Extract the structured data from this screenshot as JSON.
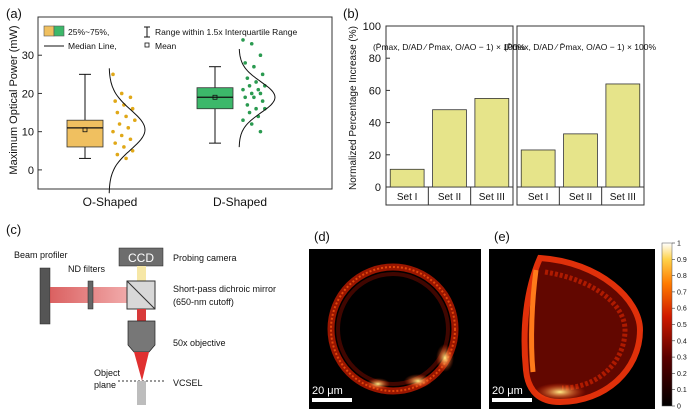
{
  "panels": {
    "a": {
      "label": "(a)",
      "legend": {
        "box_label": "25%~75%,",
        "median_label": "Median Line,",
        "range_label": "Range within 1.5x Interquartile Range",
        "mean_label": "Mean"
      }
    },
    "b": {
      "label": "(b)",
      "formula_left": "(P̄max, D/AD ⁄ P̄max, O/AO − 1) × 100%",
      "formula_right": "(P̄max, D/AD ⁄ P̄max, O/AO − 1) × 100%"
    },
    "c": {
      "label": "(c)",
      "ccd": "CCD",
      "labels": {
        "beam_profiler": "Beam profiler",
        "nd_filters": "ND filters",
        "probing_camera": "Probing camera",
        "dichroic1": "Short-pass dichroic mirror",
        "dichroic2": "(650-nm cutoff)",
        "objective": "50x objective",
        "object1": "Object",
        "object2": "plane",
        "vcsel": "VCSEL"
      }
    },
    "d": {
      "label": "(d)",
      "scalebar": "20 μm"
    },
    "e": {
      "label": "(e)",
      "scalebar": "20 μm"
    },
    "colorbar": {
      "ticks": [
        "1",
        "0.9",
        "0.8",
        "0.7",
        "0.6",
        "0.5",
        "0.4",
        "0.3",
        "0.2",
        "0.1",
        "0"
      ]
    }
  },
  "chart_data": [
    {
      "type": "box",
      "ylabel": "Maximum Optical Power (mW)",
      "ylim": [
        -5,
        40
      ],
      "yticks": [
        0,
        10,
        20,
        30
      ],
      "categories": [
        "O-Shaped",
        "D-Shaped"
      ],
      "boxes": [
        {
          "name": "O-Shaped",
          "color": "#f0c060",
          "whisker_low": 3,
          "q1": 6,
          "median": 11,
          "q3": 13,
          "whisker_high": 25,
          "mean": 10.5,
          "points": [
            25,
            20,
            19,
            18,
            17,
            16,
            15,
            14,
            13,
            12,
            11,
            10,
            9,
            8,
            7,
            6,
            5,
            4,
            3
          ]
        },
        {
          "name": "D-Shaped",
          "color": "#3cb86a",
          "whisker_low": 7,
          "q1": 16,
          "median": 19,
          "q3": 21.5,
          "whisker_high": 27,
          "mean": 19,
          "points": [
            34,
            33,
            30,
            28,
            27,
            25,
            24,
            23,
            22,
            22,
            21,
            21,
            20,
            20,
            19,
            19,
            18,
            17,
            16,
            16,
            15,
            14,
            13,
            12,
            10
          ]
        }
      ]
    },
    {
      "type": "bar",
      "ylabel": "Normalized Percentage Increase (%)",
      "ylim": [
        0,
        100
      ],
      "yticks": [
        0,
        20,
        40,
        60,
        80,
        100
      ],
      "groups": [
        {
          "categories": [
            "Set I",
            "Set II",
            "Set III"
          ],
          "values": [
            11,
            48,
            55
          ]
        },
        {
          "categories": [
            "Set I",
            "Set II",
            "Set III"
          ],
          "values": [
            23,
            33,
            64
          ]
        }
      ],
      "bar_color": "#e6e48a"
    }
  ]
}
